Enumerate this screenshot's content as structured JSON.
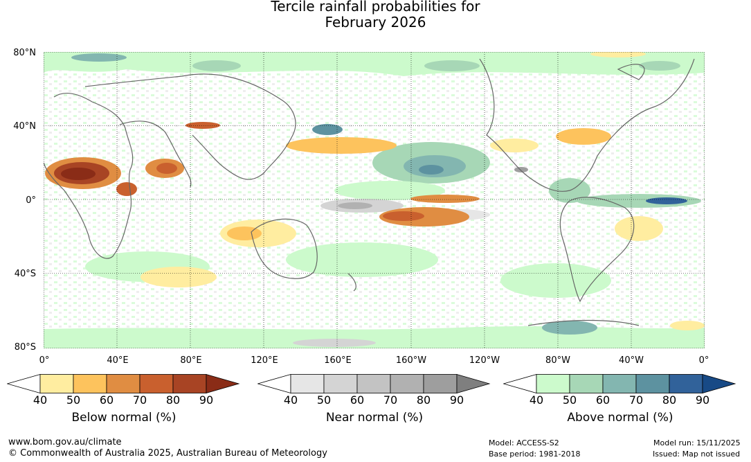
{
  "title": {
    "line1": "Tercile rainfall probabilities for",
    "line2": "February 2026"
  },
  "map": {
    "lat_labels": [
      "80°N",
      "40°N",
      "0°",
      "40°S",
      "80°S"
    ],
    "lon_labels": [
      "0°",
      "40°E",
      "80°E",
      "120°E",
      "160°E",
      "160°W",
      "120°W",
      "80°W",
      "40°W",
      "0°"
    ]
  },
  "legends": [
    {
      "name": "Below normal (%)",
      "ticks": [
        "40",
        "50",
        "60",
        "70",
        "80",
        "90"
      ],
      "colors": [
        "#ffffff",
        "#ffeda0",
        "#fdc35d",
        "#e08d42",
        "#c9602e",
        "#a84424",
        "#8a2c17"
      ]
    },
    {
      "name": "Near normal (%)",
      "ticks": [
        "40",
        "50",
        "60",
        "70",
        "80",
        "90"
      ],
      "colors": [
        "#ffffff",
        "#e6e6e6",
        "#d4d4d4",
        "#c3c3c3",
        "#b1b1b1",
        "#9e9e9e",
        "#7f7f7f"
      ]
    },
    {
      "name": "Above normal (%)",
      "ticks": [
        "40",
        "50",
        "60",
        "70",
        "80",
        "90"
      ],
      "colors": [
        "#ffffff",
        "#ccfacc",
        "#a7d7b6",
        "#83b6b0",
        "#5d92a0",
        "#31629a",
        "#184a86"
      ]
    }
  ],
  "footer": {
    "url": "www.bom.gov.au/climate",
    "copyright": "© Commonwealth of Australia 2025, Australian Bureau of Meteorology",
    "model": "Model: ACCESS-S2",
    "base_period": "Base period: 1981-2018",
    "model_run": "Model run: 15/11/2025",
    "issued": "Issued: Map not issued"
  }
}
